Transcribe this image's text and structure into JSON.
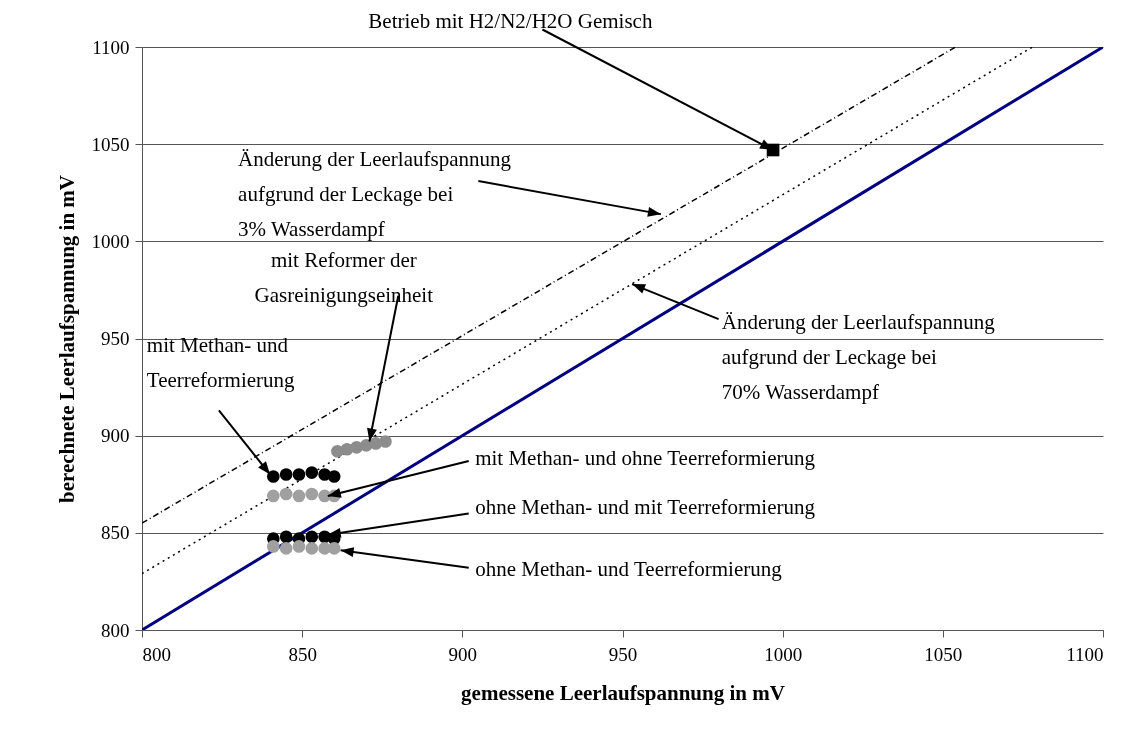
{
  "chart_data": {
    "type": "scatter",
    "xlabel": "gemessene Leerlaufspannung in mV",
    "ylabel": "berechnete Leerlaufspannung in mV",
    "xlim": [
      800,
      1100
    ],
    "ylim": [
      800,
      1100
    ],
    "xticks": [
      800,
      850,
      900,
      950,
      1000,
      1050,
      1100
    ],
    "yticks": [
      800,
      850,
      900,
      950,
      1000,
      1050,
      1100
    ],
    "grid": "y",
    "marker": "circle",
    "series": [
      {
        "type": "line",
        "color": "#000080",
        "line_style": "solid",
        "marker": "none",
        "x": [
          800,
          1100
        ],
        "values": [
          800,
          1100
        ]
      },
      {
        "type": "line",
        "color": "#000000",
        "line_style": "dashed",
        "marker": "none",
        "x": [
          800,
          1054
        ],
        "values": [
          855,
          1100
        ]
      },
      {
        "type": "line",
        "color": "#000000",
        "line_style": "dotted",
        "marker": "none",
        "x": [
          800,
          1078
        ],
        "values": [
          829,
          1100
        ]
      },
      {
        "color": "#8c8c8c",
        "x": [
          861,
          864,
          867,
          870,
          873,
          876
        ],
        "values": [
          892,
          893,
          894,
          895,
          896,
          897
        ]
      },
      {
        "color": "#000000",
        "x": [
          841,
          845,
          849,
          853,
          857,
          860
        ],
        "values": [
          879,
          880,
          880,
          881,
          880,
          879
        ]
      },
      {
        "color": "#a0a0a0",
        "x": [
          841,
          845,
          849,
          853,
          857,
          860
        ],
        "values": [
          869,
          870,
          869,
          870,
          869,
          869
        ]
      },
      {
        "color": "#000000",
        "x": [
          841,
          845,
          849,
          853,
          857,
          860
        ],
        "values": [
          847,
          848,
          847,
          848,
          848,
          847
        ]
      },
      {
        "color": "#a0a0a0",
        "x": [
          841,
          845,
          849,
          853,
          857,
          860
        ],
        "values": [
          843,
          842,
          843,
          842,
          842,
          842
        ]
      },
      {
        "color": "#000000",
        "marker": "square",
        "x": [
          997
        ],
        "values": [
          1047
        ]
      }
    ],
    "annotations": [
      {
        "text": "Betrieb mit H2/N2/H2O Gemisch",
        "x": 997,
        "y": 1047
      },
      {
        "text": "Änderung der Leerlaufspannung\naufgrund der Leckage bei\n3% Wasserdampf",
        "x": 962,
        "y": 1014
      },
      {
        "text": "mit Reformer der\nGasreinigungseinheit",
        "x": 871,
        "y": 897
      },
      {
        "text": "mit Methan- und\nTeerreformierung",
        "x": 840,
        "y": 880
      },
      {
        "text": "mit Methan- und ohne Teerreformierung",
        "x": 858,
        "y": 869
      },
      {
        "text": "ohne Methan- und mit Teerreformierung",
        "x": 858,
        "y": 849
      },
      {
        "text": "ohne Methan- und Teerreformierung",
        "x": 862,
        "y": 841
      },
      {
        "text": "Änderung der Leerlaufspannung\naufgrund der Leckage bei\n70% Wasserdampf",
        "x": 953,
        "y": 978
      }
    ]
  }
}
